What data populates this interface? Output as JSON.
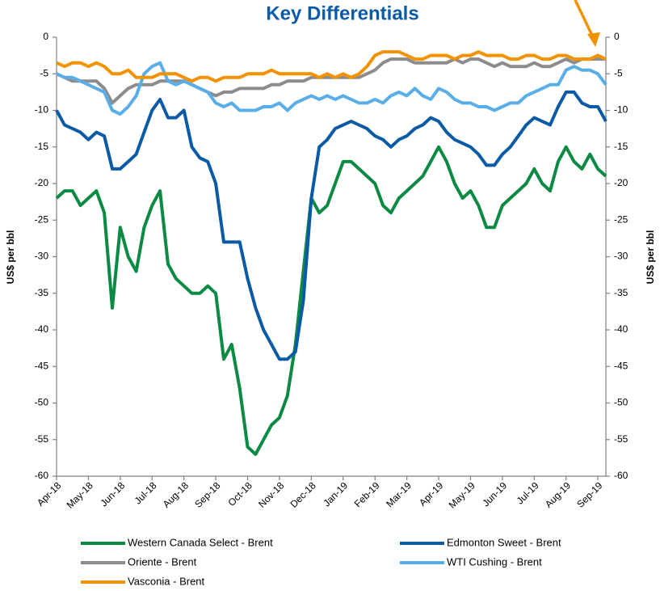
{
  "chart_data": {
    "type": "line",
    "title": "Key Differentials",
    "ylabel": "US$ per bbl",
    "y2label": "US$ per bbl",
    "categories": [
      "Apr-18",
      null,
      null,
      null,
      "May-18",
      null,
      null,
      null,
      "Jun-18",
      null,
      null,
      null,
      "Jul-18",
      null,
      null,
      null,
      "Aug-18",
      null,
      null,
      null,
      "Sep-18",
      null,
      null,
      null,
      "Oct-18",
      null,
      null,
      null,
      "Nov-18",
      null,
      null,
      null,
      "Dec-18",
      null,
      null,
      null,
      "Jan-19",
      null,
      null,
      null,
      "Feb-19",
      null,
      null,
      null,
      "Mar-19",
      null,
      null,
      null,
      "Apr-19",
      null,
      null,
      null,
      "May-19",
      null,
      null,
      null,
      "Jun-19",
      null,
      null,
      null,
      "Jul-19",
      null,
      null,
      null,
      "Aug-19",
      null,
      null,
      null,
      "Sep-19",
      null
    ],
    "series": [
      {
        "name": "Western Canada Select - Brent",
        "color": "#0a8a43",
        "values": [
          -22,
          -21,
          -21,
          -23,
          -22,
          -21,
          -24,
          -37,
          -26,
          -30,
          -32,
          -26,
          -23,
          -21,
          -31,
          -33,
          -34,
          -35,
          -35,
          -34,
          -35,
          -44,
          -42,
          -48,
          -56,
          -57,
          -55,
          -53,
          -52,
          -49,
          -42,
          -32,
          -22,
          -24,
          -23,
          -20,
          -17,
          -17,
          -18,
          -19,
          -20,
          -23,
          -24,
          -22,
          -21,
          -20,
          -19,
          -17,
          -15,
          -17,
          -20,
          -22,
          -21,
          -23,
          -26,
          -26,
          -23,
          -22,
          -21,
          -20,
          -18,
          -20,
          -21,
          -17,
          -15,
          -17,
          -18,
          -16,
          -18,
          -19
        ]
      },
      {
        "name": "Edmonton Sweet - Brent",
        "color": "#0b5aa6",
        "values": [
          -10,
          -12,
          -12.5,
          -13,
          -14,
          -13,
          -13.5,
          -18,
          -18,
          -17,
          -16,
          -13,
          -10,
          -8.5,
          -11,
          -11,
          -10,
          -15,
          -16.5,
          -17,
          -20,
          -28,
          -28,
          -28,
          -33,
          -37,
          -40,
          -42,
          -44,
          -44,
          -43,
          -36,
          -22,
          -15,
          -14,
          -12.5,
          -12,
          -11.5,
          -12,
          -12.5,
          -13.5,
          -14,
          -15,
          -14,
          -13.5,
          -12.5,
          -12,
          -11,
          -11.5,
          -13,
          -14,
          -14.5,
          -15,
          -16,
          -17.5,
          -17.5,
          -16,
          -15,
          -13.5,
          -12,
          -11,
          -11.5,
          -12,
          -9.5,
          -7.5,
          -7.5,
          -9,
          -9.5,
          -9.5,
          -11.5
        ]
      },
      {
        "name": "Oriente - Brent",
        "color": "#8c8c8c",
        "values": [
          -5,
          -5.5,
          -6,
          -6,
          -6,
          -6,
          -7,
          -9,
          -8,
          -7,
          -6.5,
          -6.5,
          -6.5,
          -6,
          -6,
          -6,
          -6,
          -6.5,
          -7,
          -7.5,
          -8,
          -7.5,
          -7.5,
          -7,
          -7,
          -7,
          -7,
          -6.5,
          -6.5,
          -6,
          -6,
          -6,
          -5.5,
          -5.5,
          -5.5,
          -5.5,
          -5.5,
          -5.5,
          -5.5,
          -5,
          -4.5,
          -3.5,
          -3,
          -3,
          -3,
          -3.5,
          -3.5,
          -3.5,
          -3.5,
          -3.5,
          -3,
          -3.5,
          -3,
          -3,
          -3.5,
          -4,
          -3.5,
          -4,
          -4,
          -4,
          -3.5,
          -4,
          -4,
          -3.5,
          -3,
          -3.5,
          -3,
          -3,
          -3,
          -3
        ]
      },
      {
        "name": "WTI Cushing - Brent",
        "color": "#5aaee8",
        "values": [
          -5,
          -5.5,
          -5.5,
          -6,
          -6.5,
          -7,
          -7.5,
          -10,
          -10.5,
          -9.5,
          -8,
          -5,
          -4,
          -3.5,
          -6,
          -6.5,
          -6,
          -6.5,
          -7,
          -7.5,
          -9,
          -9.5,
          -9,
          -10,
          -10,
          -10,
          -9.5,
          -9.5,
          -9,
          -10,
          -9,
          -8.5,
          -8,
          -8.5,
          -8,
          -8.5,
          -8,
          -8.5,
          -9,
          -9,
          -8.5,
          -9,
          -8,
          -7.5,
          -8,
          -7,
          -8,
          -8.5,
          -7,
          -7.5,
          -8.5,
          -9,
          -9,
          -9.5,
          -9.5,
          -10,
          -9.5,
          -9,
          -9,
          -8,
          -7.5,
          -7,
          -6.5,
          -6.5,
          -4.5,
          -4,
          -4.5,
          -4.5,
          -5,
          -6.5
        ]
      },
      {
        "name": "Vasconia - Brent",
        "color": "#f39200",
        "values": [
          -3.5,
          -4,
          -3.5,
          -3.5,
          -4,
          -3.5,
          -4,
          -5,
          -5,
          -4.5,
          -5.5,
          -5.5,
          -5.5,
          -5,
          -5,
          -5,
          -5.5,
          -6,
          -5.5,
          -5.5,
          -6,
          -5.5,
          -5.5,
          -5.5,
          -5,
          -5,
          -5,
          -4.5,
          -5,
          -5,
          -5,
          -5,
          -5,
          -5.5,
          -5,
          -5.5,
          -5,
          -5.5,
          -5,
          -4,
          -2.5,
          -2,
          -2,
          -2,
          -2.5,
          -3,
          -3,
          -2.5,
          -2.5,
          -2.5,
          -3,
          -2.5,
          -2.5,
          -2,
          -2.5,
          -2.5,
          -2.5,
          -3,
          -3,
          -2.5,
          -2.5,
          -3,
          -3,
          -2.5,
          -2.5,
          -3,
          -3,
          -3,
          -2.5,
          -3
        ]
      }
    ],
    "ylim": [
      -60,
      0
    ],
    "yticks": [
      0,
      -5,
      -10,
      -15,
      -20,
      -25,
      -30,
      -35,
      -40,
      -45,
      -50,
      -55,
      -60
    ],
    "y2lim": [
      -60,
      0
    ],
    "y2ticks": [
      0,
      -5,
      -10,
      -15,
      -20,
      -25,
      -30,
      -35,
      -40,
      -45,
      -50,
      -55,
      -60
    ],
    "grid": false
  }
}
